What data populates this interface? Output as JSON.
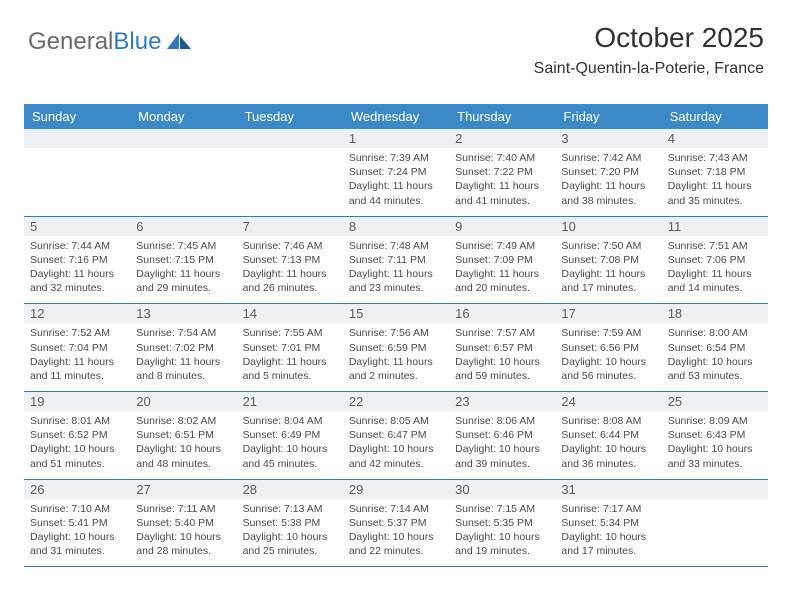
{
  "logo": {
    "text1": "General",
    "text2": "Blue"
  },
  "title": "October 2025",
  "subtitle": "Saint-Quentin-la-Poterie, France",
  "colors": {
    "header_bg": "#3b89c7",
    "header_text": "#ffffff",
    "daynum_bg": "#eef1f3",
    "daynum_text": "#5c5c5c",
    "border": "#2d7bc0",
    "body_text": "#4a4a4a",
    "title_text": "#323232",
    "logo_gray": "#6b6b6b",
    "logo_blue": "#2d7bc0"
  },
  "dayNames": [
    "Sunday",
    "Monday",
    "Tuesday",
    "Wednesday",
    "Thursday",
    "Friday",
    "Saturday"
  ],
  "weeks": [
    [
      {
        "n": "",
        "sr": "",
        "ss": "",
        "dl": ""
      },
      {
        "n": "",
        "sr": "",
        "ss": "",
        "dl": ""
      },
      {
        "n": "",
        "sr": "",
        "ss": "",
        "dl": ""
      },
      {
        "n": "1",
        "sr": "Sunrise: 7:39 AM",
        "ss": "Sunset: 7:24 PM",
        "dl": "Daylight: 11 hours and 44 minutes."
      },
      {
        "n": "2",
        "sr": "Sunrise: 7:40 AM",
        "ss": "Sunset: 7:22 PM",
        "dl": "Daylight: 11 hours and 41 minutes."
      },
      {
        "n": "3",
        "sr": "Sunrise: 7:42 AM",
        "ss": "Sunset: 7:20 PM",
        "dl": "Daylight: 11 hours and 38 minutes."
      },
      {
        "n": "4",
        "sr": "Sunrise: 7:43 AM",
        "ss": "Sunset: 7:18 PM",
        "dl": "Daylight: 11 hours and 35 minutes."
      }
    ],
    [
      {
        "n": "5",
        "sr": "Sunrise: 7:44 AM",
        "ss": "Sunset: 7:16 PM",
        "dl": "Daylight: 11 hours and 32 minutes."
      },
      {
        "n": "6",
        "sr": "Sunrise: 7:45 AM",
        "ss": "Sunset: 7:15 PM",
        "dl": "Daylight: 11 hours and 29 minutes."
      },
      {
        "n": "7",
        "sr": "Sunrise: 7:46 AM",
        "ss": "Sunset: 7:13 PM",
        "dl": "Daylight: 11 hours and 26 minutes."
      },
      {
        "n": "8",
        "sr": "Sunrise: 7:48 AM",
        "ss": "Sunset: 7:11 PM",
        "dl": "Daylight: 11 hours and 23 minutes."
      },
      {
        "n": "9",
        "sr": "Sunrise: 7:49 AM",
        "ss": "Sunset: 7:09 PM",
        "dl": "Daylight: 11 hours and 20 minutes."
      },
      {
        "n": "10",
        "sr": "Sunrise: 7:50 AM",
        "ss": "Sunset: 7:08 PM",
        "dl": "Daylight: 11 hours and 17 minutes."
      },
      {
        "n": "11",
        "sr": "Sunrise: 7:51 AM",
        "ss": "Sunset: 7:06 PM",
        "dl": "Daylight: 11 hours and 14 minutes."
      }
    ],
    [
      {
        "n": "12",
        "sr": "Sunrise: 7:52 AM",
        "ss": "Sunset: 7:04 PM",
        "dl": "Daylight: 11 hours and 11 minutes."
      },
      {
        "n": "13",
        "sr": "Sunrise: 7:54 AM",
        "ss": "Sunset: 7:02 PM",
        "dl": "Daylight: 11 hours and 8 minutes."
      },
      {
        "n": "14",
        "sr": "Sunrise: 7:55 AM",
        "ss": "Sunset: 7:01 PM",
        "dl": "Daylight: 11 hours and 5 minutes."
      },
      {
        "n": "15",
        "sr": "Sunrise: 7:56 AM",
        "ss": "Sunset: 6:59 PM",
        "dl": "Daylight: 11 hours and 2 minutes."
      },
      {
        "n": "16",
        "sr": "Sunrise: 7:57 AM",
        "ss": "Sunset: 6:57 PM",
        "dl": "Daylight: 10 hours and 59 minutes."
      },
      {
        "n": "17",
        "sr": "Sunrise: 7:59 AM",
        "ss": "Sunset: 6:56 PM",
        "dl": "Daylight: 10 hours and 56 minutes."
      },
      {
        "n": "18",
        "sr": "Sunrise: 8:00 AM",
        "ss": "Sunset: 6:54 PM",
        "dl": "Daylight: 10 hours and 53 minutes."
      }
    ],
    [
      {
        "n": "19",
        "sr": "Sunrise: 8:01 AM",
        "ss": "Sunset: 6:52 PM",
        "dl": "Daylight: 10 hours and 51 minutes."
      },
      {
        "n": "20",
        "sr": "Sunrise: 8:02 AM",
        "ss": "Sunset: 6:51 PM",
        "dl": "Daylight: 10 hours and 48 minutes."
      },
      {
        "n": "21",
        "sr": "Sunrise: 8:04 AM",
        "ss": "Sunset: 6:49 PM",
        "dl": "Daylight: 10 hours and 45 minutes."
      },
      {
        "n": "22",
        "sr": "Sunrise: 8:05 AM",
        "ss": "Sunset: 6:47 PM",
        "dl": "Daylight: 10 hours and 42 minutes."
      },
      {
        "n": "23",
        "sr": "Sunrise: 8:06 AM",
        "ss": "Sunset: 6:46 PM",
        "dl": "Daylight: 10 hours and 39 minutes."
      },
      {
        "n": "24",
        "sr": "Sunrise: 8:08 AM",
        "ss": "Sunset: 6:44 PM",
        "dl": "Daylight: 10 hours and 36 minutes."
      },
      {
        "n": "25",
        "sr": "Sunrise: 8:09 AM",
        "ss": "Sunset: 6:43 PM",
        "dl": "Daylight: 10 hours and 33 minutes."
      }
    ],
    [
      {
        "n": "26",
        "sr": "Sunrise: 7:10 AM",
        "ss": "Sunset: 5:41 PM",
        "dl": "Daylight: 10 hours and 31 minutes."
      },
      {
        "n": "27",
        "sr": "Sunrise: 7:11 AM",
        "ss": "Sunset: 5:40 PM",
        "dl": "Daylight: 10 hours and 28 minutes."
      },
      {
        "n": "28",
        "sr": "Sunrise: 7:13 AM",
        "ss": "Sunset: 5:38 PM",
        "dl": "Daylight: 10 hours and 25 minutes."
      },
      {
        "n": "29",
        "sr": "Sunrise: 7:14 AM",
        "ss": "Sunset: 5:37 PM",
        "dl": "Daylight: 10 hours and 22 minutes."
      },
      {
        "n": "30",
        "sr": "Sunrise: 7:15 AM",
        "ss": "Sunset: 5:35 PM",
        "dl": "Daylight: 10 hours and 19 minutes."
      },
      {
        "n": "31",
        "sr": "Sunrise: 7:17 AM",
        "ss": "Sunset: 5:34 PM",
        "dl": "Daylight: 10 hours and 17 minutes."
      },
      {
        "n": "",
        "sr": "",
        "ss": "",
        "dl": ""
      }
    ]
  ]
}
